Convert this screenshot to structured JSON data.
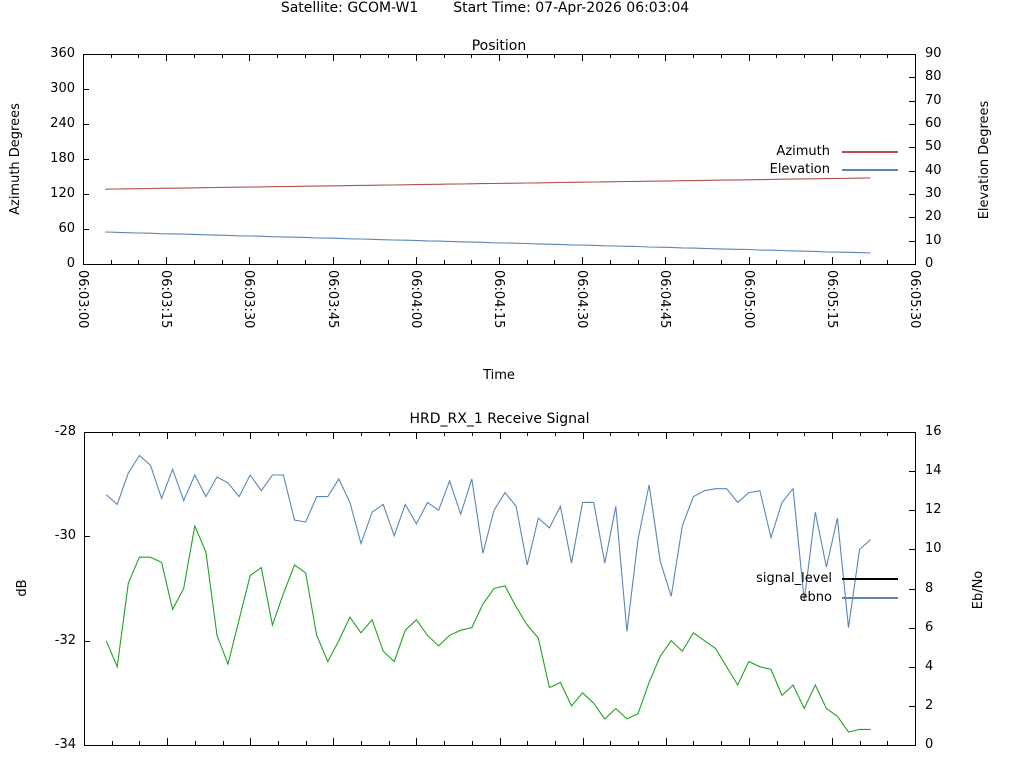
{
  "header": {
    "satellite": "Satellite: GCOM-W1",
    "start_time": "Start Time: 07-Apr-2026 06:03:04"
  },
  "chart_data": [
    {
      "type": "line",
      "title": "Position",
      "xlabel": "Time",
      "grid": false,
      "legend_position": "inside top-right",
      "x_tick_labels": [
        "06:03:00",
        "06:03:15",
        "06:03:30",
        "06:03:45",
        "06:04:00",
        "06:04:15",
        "06:04:30",
        "06:04:45",
        "06:05:00",
        "06:05:15",
        "06:05:30"
      ],
      "x_range_seconds": [
        0,
        150
      ],
      "x_major_step_seconds": 15,
      "x_minor_step_seconds": 5,
      "y_left": {
        "label": "Azimuth Degrees",
        "range": [
          0,
          360
        ],
        "ticks": [
          0,
          60,
          120,
          180,
          240,
          300,
          360
        ]
      },
      "y_right": {
        "label": "Elevation Degrees",
        "range": [
          0,
          90
        ],
        "ticks": [
          0,
          10,
          20,
          30,
          40,
          50,
          60,
          70,
          80,
          90
        ]
      },
      "x_seconds": [
        4,
        6,
        8,
        10,
        12,
        14,
        16,
        18,
        20,
        22,
        24,
        26,
        28,
        30,
        32,
        34,
        36,
        38,
        40,
        42,
        44,
        46,
        48,
        50,
        52,
        54,
        56,
        58,
        60,
        62,
        64,
        66,
        68,
        70,
        72,
        74,
        76,
        78,
        80,
        82,
        84,
        86,
        88,
        90,
        92,
        94,
        96,
        98,
        100,
        102,
        104,
        106,
        108,
        110,
        112,
        114,
        116,
        118,
        120,
        122,
        124,
        126,
        128,
        130,
        132,
        134,
        136,
        138,
        140,
        142
      ],
      "series": [
        {
          "name": "Azimuth",
          "axis": "left",
          "color": "#b5504c",
          "values": [
            128.3,
            128.6,
            128.9,
            129.1,
            129.4,
            129.7,
            130.0,
            130.2,
            130.5,
            130.8,
            131.1,
            131.4,
            131.6,
            131.9,
            132.2,
            132.5,
            132.7,
            133.0,
            133.3,
            133.6,
            133.9,
            134.1,
            134.4,
            134.7,
            135.0,
            135.3,
            135.5,
            135.8,
            136.1,
            136.4,
            136.6,
            136.9,
            137.2,
            137.5,
            137.8,
            138.0,
            138.3,
            138.6,
            138.9,
            139.1,
            139.4,
            139.7,
            140.0,
            140.3,
            140.5,
            140.8,
            141.1,
            141.4,
            141.6,
            141.9,
            142.2,
            142.5,
            142.8,
            143.0,
            143.3,
            143.6,
            143.9,
            144.1,
            144.4,
            144.7,
            145.0,
            145.3,
            145.5,
            145.8,
            146.1,
            146.4,
            146.6,
            146.9,
            147.2,
            147.5
          ]
        },
        {
          "name": "Elevation",
          "axis": "right",
          "color": "#5b87b7",
          "values": [
            13.7,
            13.6,
            13.4,
            13.3,
            13.2,
            13.0,
            12.9,
            12.8,
            12.7,
            12.5,
            12.4,
            12.3,
            12.1,
            12.0,
            11.9,
            11.7,
            11.6,
            11.5,
            11.4,
            11.2,
            11.1,
            11.0,
            10.8,
            10.7,
            10.6,
            10.4,
            10.3,
            10.2,
            10.1,
            9.9,
            9.8,
            9.7,
            9.5,
            9.4,
            9.3,
            9.1,
            9.0,
            8.9,
            8.8,
            8.6,
            8.5,
            8.4,
            8.2,
            8.1,
            8.0,
            7.8,
            7.7,
            7.6,
            7.5,
            7.3,
            7.2,
            7.1,
            6.9,
            6.8,
            6.7,
            6.5,
            6.4,
            6.3,
            6.2,
            6.0,
            5.9,
            5.8,
            5.6,
            5.5,
            5.4,
            5.2,
            5.1,
            5.0,
            4.9,
            4.7
          ]
        }
      ]
    },
    {
      "type": "line",
      "title": "HRD_RX_1 Receive Signal",
      "xlabel": "",
      "grid": false,
      "legend_position": "inside right",
      "x_tick_labels": [],
      "x_range_seconds": [
        0,
        150
      ],
      "x_major_step_seconds": 15,
      "x_minor_step_seconds": 5,
      "y_left": {
        "label": "dB",
        "range": [
          -34,
          -28
        ],
        "ticks": [
          -28,
          -30,
          -32,
          -34
        ]
      },
      "y_right": {
        "label": "Eb/No",
        "range": [
          0,
          16
        ],
        "ticks": [
          0,
          2,
          4,
          6,
          8,
          10,
          12,
          14,
          16
        ]
      },
      "x_seconds": [
        4,
        6,
        8,
        10,
        12,
        14,
        16,
        18,
        20,
        22,
        24,
        26,
        28,
        30,
        32,
        34,
        36,
        38,
        40,
        42,
        44,
        46,
        48,
        50,
        52,
        54,
        56,
        58,
        60,
        62,
        64,
        66,
        68,
        70,
        72,
        74,
        76,
        78,
        80,
        82,
        84,
        86,
        88,
        90,
        92,
        94,
        96,
        98,
        100,
        102,
        104,
        106,
        108,
        110,
        112,
        114,
        116,
        118,
        120,
        122,
        124,
        126,
        128,
        130,
        132,
        134,
        136,
        138,
        140,
        142
      ],
      "series": [
        {
          "name": "signal_level",
          "axis": "left",
          "color": "#21a321",
          "legend_color": "#000000",
          "values": [
            -32.0,
            -32.5,
            -30.9,
            -30.4,
            -30.4,
            -30.5,
            -31.4,
            -31.0,
            -29.8,
            -30.3,
            -31.9,
            -32.45,
            -31.6,
            -30.75,
            -30.6,
            -31.7,
            -31.1,
            -30.55,
            -30.7,
            -31.9,
            -32.4,
            -32.0,
            -31.55,
            -31.85,
            -31.6,
            -32.2,
            -32.4,
            -31.8,
            -31.6,
            -31.9,
            -32.1,
            -31.9,
            -31.8,
            -31.75,
            -31.3,
            -31.0,
            -30.95,
            -31.35,
            -31.7,
            -31.95,
            -32.9,
            -32.8,
            -33.25,
            -33.0,
            -33.2,
            -33.5,
            -33.3,
            -33.5,
            -33.4,
            -32.8,
            -32.3,
            -32.0,
            -32.2,
            -31.85,
            -32.0,
            -32.15,
            -32.5,
            -32.85,
            -32.4,
            -32.5,
            -32.55,
            -33.05,
            -32.85,
            -33.3,
            -32.85,
            -33.3,
            -33.45,
            -33.75,
            -33.7,
            -33.7
          ]
        },
        {
          "name": "ebno",
          "axis": "right",
          "color": "#5b87b7",
          "values": [
            12.8,
            12.3,
            13.9,
            14.8,
            14.3,
            12.6,
            14.1,
            12.5,
            13.8,
            12.7,
            13.7,
            13.4,
            12.7,
            13.8,
            13.0,
            13.8,
            13.8,
            11.5,
            11.4,
            12.7,
            12.7,
            13.6,
            12.4,
            10.3,
            11.9,
            12.3,
            10.7,
            12.3,
            11.3,
            12.4,
            12.0,
            13.5,
            11.8,
            13.6,
            9.8,
            12.0,
            12.9,
            12.2,
            9.2,
            11.6,
            11.1,
            12.2,
            9.3,
            12.4,
            12.4,
            9.3,
            12.2,
            5.8,
            10.5,
            13.3,
            9.4,
            7.6,
            11.2,
            12.7,
            13.0,
            13.1,
            13.1,
            12.4,
            12.9,
            13.0,
            10.6,
            12.4,
            13.1,
            7.4,
            11.9,
            9.1,
            11.6,
            6.0,
            10.0,
            10.5
          ]
        }
      ]
    }
  ]
}
